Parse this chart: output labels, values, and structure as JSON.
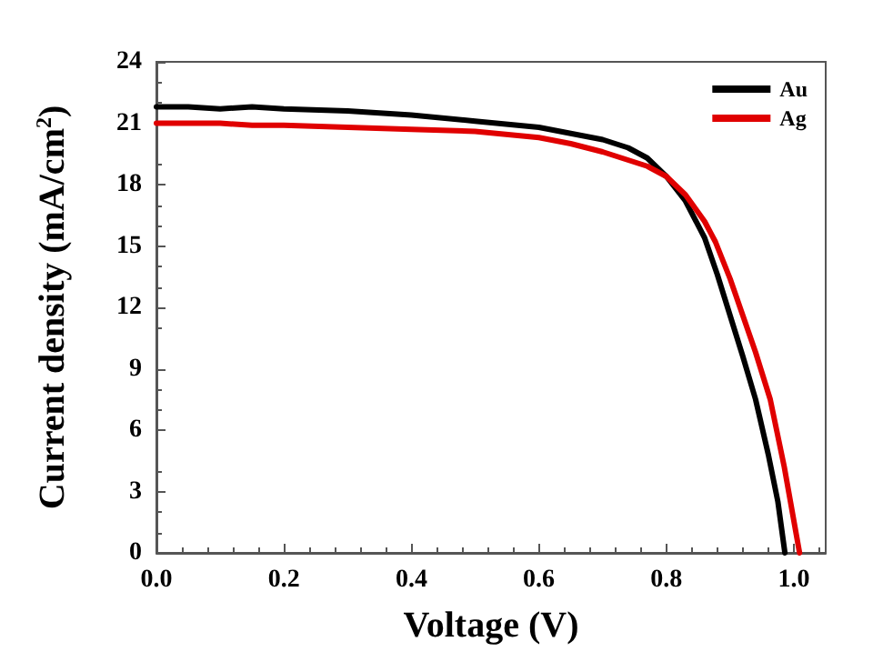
{
  "chart_data": {
    "type": "line",
    "xlabel": "Voltage (V)",
    "ylabel": "Current density (mA/cm$^{2}$)",
    "xlim": [
      0,
      1.05
    ],
    "xticks": [
      {
        "value": 0,
        "label": "0.0"
      },
      0.2,
      0.4,
      0.6,
      0.8,
      {
        "value": 1,
        "label": "1.0"
      }
    ],
    "ylim": [
      0,
      24
    ],
    "yticks": [
      0,
      3,
      6,
      9,
      12,
      15,
      18,
      21,
      24
    ],
    "legend": "top right",
    "grid": false,
    "marker": "none",
    "line_style": "solid",
    "series": [
      {
        "name": "Au",
        "color": "#000000",
        "x": [
          0,
          0.05,
          0.1,
          0.15,
          0.2,
          0.3,
          0.4,
          0.5,
          0.6,
          0.65,
          0.7,
          0.74,
          0.77,
          0.8,
          0.83,
          0.86,
          0.88,
          0.9,
          0.92,
          0.94,
          0.96,
          0.975,
          0.986
        ],
        "values": [
          21.8,
          21.8,
          21.7,
          21.8,
          21.7,
          21.6,
          21.4,
          21.1,
          20.8,
          20.5,
          20.2,
          19.8,
          19.3,
          18.4,
          17.2,
          15.4,
          13.6,
          11.6,
          9.6,
          7.5,
          4.8,
          2.5,
          0
        ]
      },
      {
        "name": "Ag",
        "color": "#e00000",
        "x": [
          0,
          0.05,
          0.1,
          0.15,
          0.2,
          0.3,
          0.4,
          0.5,
          0.6,
          0.65,
          0.7,
          0.74,
          0.77,
          0.8,
          0.83,
          0.86,
          0.877,
          0.9,
          0.92,
          0.94,
          0.963,
          0.985,
          1.009
        ],
        "values": [
          21.0,
          21.0,
          21.0,
          20.9,
          20.9,
          20.8,
          20.7,
          20.6,
          20.3,
          20.0,
          19.6,
          19.2,
          18.9,
          18.4,
          17.5,
          16.2,
          15.2,
          13.4,
          11.6,
          9.8,
          7.5,
          4.2,
          0
        ]
      }
    ]
  }
}
